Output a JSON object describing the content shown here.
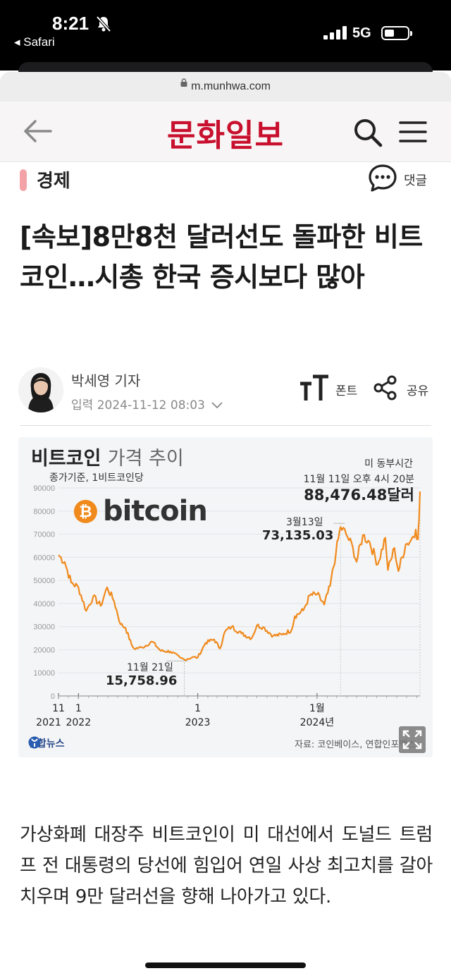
{
  "status_bar": {
    "time": "8:21",
    "back_app": "◂ Safari",
    "network": "5G"
  },
  "browser": {
    "url": "m.munhwa.com"
  },
  "site": {
    "logo": "문화일보"
  },
  "article": {
    "section": "경제",
    "comment_label": "댓글",
    "headline": "[속보]8만8천 달러선도 돌파한 비트코인…시총 한국 증시보다 많아",
    "author": "박세영 기자",
    "date_prefix": "입력",
    "date": "2024-11-12 08:03",
    "font_label": "폰트",
    "share_label": "공유",
    "body": "가상화폐 대장주 비트코인이 미 대선에서 도널드 트럼프 전 대통령의 당선에 힘입어 연일 사상 최고치를 갈아치우며 9만 달러선을 향해 나아가고 있다."
  },
  "chart_data": {
    "type": "line",
    "title": "비트코인",
    "subtitle": "가격 추이",
    "basis": "종가기준, 1비트코인당",
    "timezone_note": "미 동부시간",
    "brand": "bitcoin",
    "ylim": [
      0,
      90000
    ],
    "y_ticks": [
      "0",
      "10000",
      "20000",
      "30000",
      "40000",
      "50000",
      "60000",
      "70000",
      "80000",
      "90000"
    ],
    "x_ticks": [
      {
        "month": "11",
        "year": "2021"
      },
      {
        "month": "1",
        "year": "2022"
      },
      {
        "month": "1",
        "year": "2023"
      },
      {
        "month": "1월",
        "year": "2024년"
      }
    ],
    "annotations": {
      "last_date": "11월 11일 오후 4시 20분",
      "last_value": "88,476.48달러",
      "peak_date": "3월13일",
      "peak_value": "73,135.03",
      "low_date": "11월 21일",
      "low_value": "15,758.96"
    },
    "series": [
      {
        "color": "#f08a1c",
        "x": [
          "2021-11-01",
          "2021-11-20",
          "2021-12-10",
          "2022-01-01",
          "2022-01-25",
          "2022-02-15",
          "2022-03-10",
          "2022-03-30",
          "2022-04-20",
          "2022-05-10",
          "2022-05-25",
          "2022-06-13",
          "2022-06-20",
          "2022-07-15",
          "2022-08-15",
          "2022-09-10",
          "2022-10-10",
          "2022-11-09",
          "2022-11-21",
          "2022-12-20",
          "2023-01-01",
          "2023-01-25",
          "2023-02-20",
          "2023-03-10",
          "2023-03-25",
          "2023-04-15",
          "2023-05-15",
          "2023-06-15",
          "2023-07-01",
          "2023-07-20",
          "2023-08-20",
          "2023-09-15",
          "2023-10-15",
          "2023-10-25",
          "2023-11-20",
          "2023-12-10",
          "2024-01-01",
          "2024-01-23",
          "2024-02-10",
          "2024-02-28",
          "2024-03-13",
          "2024-03-30",
          "2024-04-20",
          "2024-05-01",
          "2024-05-20",
          "2024-06-10",
          "2024-07-05",
          "2024-07-28",
          "2024-08-05",
          "2024-08-25",
          "2024-09-06",
          "2024-09-28",
          "2024-10-15",
          "2024-10-29",
          "2024-11-05",
          "2024-11-08",
          "2024-11-11"
        ],
        "values": [
          61000,
          58000,
          49000,
          47000,
          36800,
          43000,
          39000,
          47000,
          41000,
          31000,
          29500,
          22000,
          20500,
          21000,
          23500,
          19500,
          19200,
          16500,
          15758.96,
          16800,
          16600,
          23000,
          24500,
          20500,
          27800,
          30000,
          27000,
          25000,
          30500,
          29800,
          26000,
          26500,
          28500,
          34500,
          37000,
          43500,
          44000,
          39500,
          47500,
          62000,
          73135.03,
          70000,
          64000,
          58000,
          69500,
          66500,
          57000,
          68500,
          54500,
          64000,
          54000,
          65500,
          67500,
          72000,
          67800,
          76000,
          88476.48
        ]
      }
    ]
  }
}
